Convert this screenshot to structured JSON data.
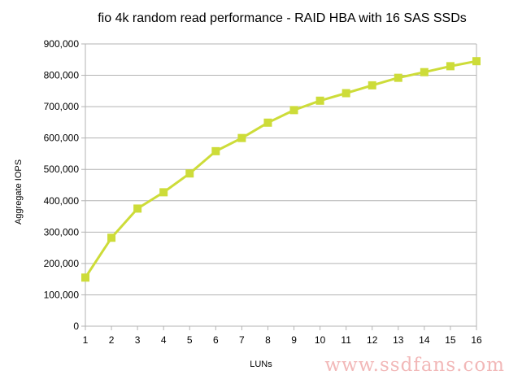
{
  "chart_data": {
    "type": "line",
    "title": "fio 4k random read performance - RAID HBA with 16 SAS SSDs",
    "xlabel": "LUNs",
    "ylabel": "Aggregate IOPS",
    "x": [
      1,
      2,
      3,
      4,
      5,
      6,
      7,
      8,
      9,
      10,
      11,
      12,
      13,
      14,
      15,
      16
    ],
    "series": [
      {
        "values": [
          155000,
          282000,
          375000,
          427000,
          487000,
          558000,
          600000,
          649000,
          689000,
          719000,
          743000,
          768000,
          792000,
          810000,
          829000,
          845000
        ],
        "color": "#cddc39",
        "marker": "square"
      }
    ],
    "ylim": [
      0,
      900000
    ],
    "xlim": [
      1,
      16
    ],
    "y_ticks": [
      "0",
      "100,000",
      "200,000",
      "300,000",
      "400,000",
      "500,000",
      "600,000",
      "700,000",
      "800,000",
      "900,000"
    ],
    "x_ticks": [
      "1",
      "2",
      "3",
      "4",
      "5",
      "6",
      "7",
      "8",
      "9",
      "10",
      "11",
      "12",
      "13",
      "14",
      "15",
      "16"
    ],
    "grid": "horizontal",
    "legend": "none"
  },
  "watermark": "www.ssdfans.com",
  "colors": {
    "series": "#cddc39",
    "grid": "#b3b3b3",
    "axis": "#b3b3b3",
    "watermark": "#f2b8b8"
  }
}
